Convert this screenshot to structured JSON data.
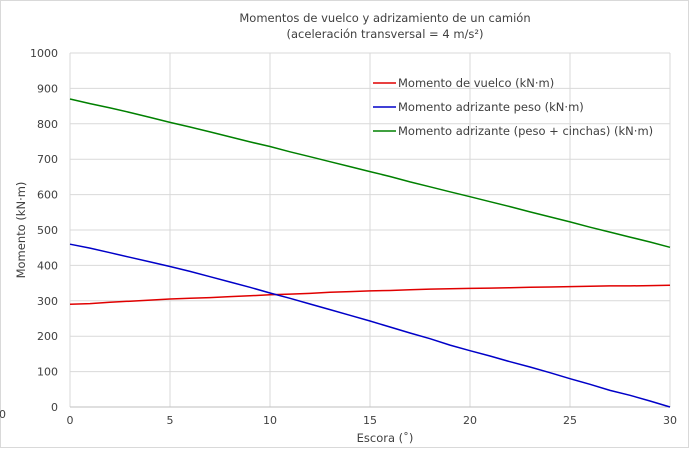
{
  "chart_data": {
    "type": "line",
    "title": "Momentos de vuelco y adrizamiento  de un camión",
    "subtitle": "(aceleración  transversal = 4 m/s²)",
    "xlabel": "Escora (˚)",
    "ylabel": "Momento (kN·m)",
    "xlim": [
      0,
      30
    ],
    "ylim": [
      0,
      1000
    ],
    "x_ticks": [
      0,
      5,
      10,
      15,
      20,
      25,
      30
    ],
    "y_ticks": [
      0,
      100,
      200,
      300,
      400,
      500,
      600,
      700,
      800,
      900,
      1000
    ],
    "grid": true,
    "legend_position": "top-right",
    "stray_label": "0",
    "series": [
      {
        "name": "Momento de vuelco (kN·m)",
        "color": "#e00000",
        "x": [
          0,
          1,
          2,
          3,
          4,
          5,
          6,
          7,
          8,
          9,
          10,
          11,
          12,
          13,
          14,
          15,
          16,
          17,
          18,
          19,
          20,
          21,
          22,
          23,
          24,
          25,
          26,
          27,
          28,
          29,
          30
        ],
        "y": [
          290,
          292,
          296,
          299,
          302,
          305,
          307,
          309,
          312,
          314,
          317,
          319,
          321,
          324,
          326,
          328,
          329,
          331,
          333,
          334,
          335,
          336,
          337,
          338,
          339,
          340,
          341,
          342,
          342,
          343,
          344
        ]
      },
      {
        "name": "Momento adrizante peso (kN·m)",
        "color": "#0000c8",
        "x": [
          0,
          1,
          2,
          3,
          4,
          5,
          6,
          7,
          8,
          9,
          10,
          11,
          12,
          13,
          14,
          15,
          16,
          17,
          18,
          19,
          20,
          21,
          22,
          23,
          24,
          25,
          26,
          27,
          28,
          29,
          30
        ],
        "y": [
          460,
          449,
          436,
          423,
          410,
          397,
          383,
          368,
          353,
          338,
          322,
          307,
          291,
          275,
          259,
          243,
          226,
          209,
          193,
          175,
          159,
          144,
          128,
          113,
          97,
          80,
          64,
          47,
          33,
          17,
          0
        ]
      },
      {
        "name": "Momento adrizante (peso + cinchas) (kN·m)",
        "color": "#008000",
        "x": [
          0,
          1,
          2,
          3,
          4,
          5,
          6,
          7,
          8,
          9,
          10,
          11,
          12,
          13,
          14,
          15,
          16,
          17,
          18,
          19,
          20,
          21,
          22,
          23,
          24,
          25,
          26,
          27,
          28,
          29,
          30
        ],
        "y": [
          870,
          857,
          845,
          832,
          818,
          804,
          791,
          777,
          763,
          749,
          736,
          721,
          707,
          693,
          679,
          665,
          651,
          636,
          622,
          608,
          594,
          580,
          566,
          551,
          537,
          523,
          508,
          494,
          480,
          466,
          451
        ]
      }
    ]
  }
}
